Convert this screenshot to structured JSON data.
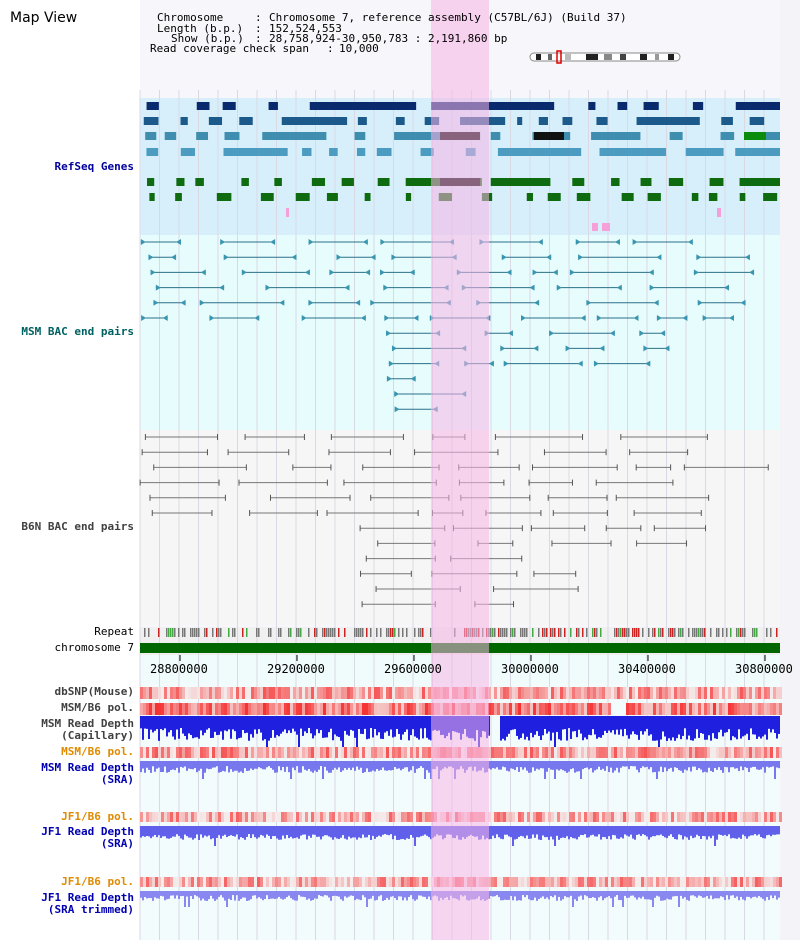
{
  "title": "Map View",
  "info": {
    "chromosome_label": "Chromosome",
    "chromosome_value": "Chromosome 7, reference assembly (C57BL/6J) (Build 37)",
    "length_label": "Length (b.p.)",
    "length_value": "152,524,553",
    "show_label": "Show (b.p.)",
    "show_value": "28,758,924-30,950,783 : 2,191,860 bp",
    "coverage_label": "Read coverage check span",
    "coverage_value": "10,000"
  },
  "tracks": {
    "refseq": "RefSeq Genes",
    "msm_bac": "MSM BAC end pairs",
    "b6n_bac": "B6N BAC end pairs",
    "repeat": "Repeat",
    "chromosome": "chromosome 7",
    "dbsnp": "dbSNP(Mouse)",
    "msm_b6_pol_1": "MSM/B6 pol.",
    "msm_depth_cap_1": "MSM Read Depth",
    "msm_depth_cap_2": "(Capillary)",
    "msm_b6_pol_2": "MSM/B6 pol.",
    "msm_depth_sra_1": "MSM Read Depth",
    "msm_depth_sra_2": "(SRA)",
    "jf1_b6_pol_1": "JF1/B6 pol.",
    "jf1_depth_sra_1": "JF1 Read Depth",
    "jf1_depth_sra_2": "(SRA)",
    "jf1_b6_pol_2": "JF1/B6 pol.",
    "jf1_depth_trim_1": "JF1 Read Depth",
    "jf1_depth_trim_2": "(SRA trimmed)"
  },
  "axis_ticks": [
    "28800000",
    "29200000",
    "29600000",
    "30000000",
    "30400000",
    "30800000"
  ],
  "colors": {
    "refseq_label": "#00009c",
    "msm_bac_label": "#006060",
    "b6n_bac_label": "#404040",
    "pol_label": "#e08a00",
    "depth_label": "#0000b0",
    "selection": "#f8b4e6"
  }
}
